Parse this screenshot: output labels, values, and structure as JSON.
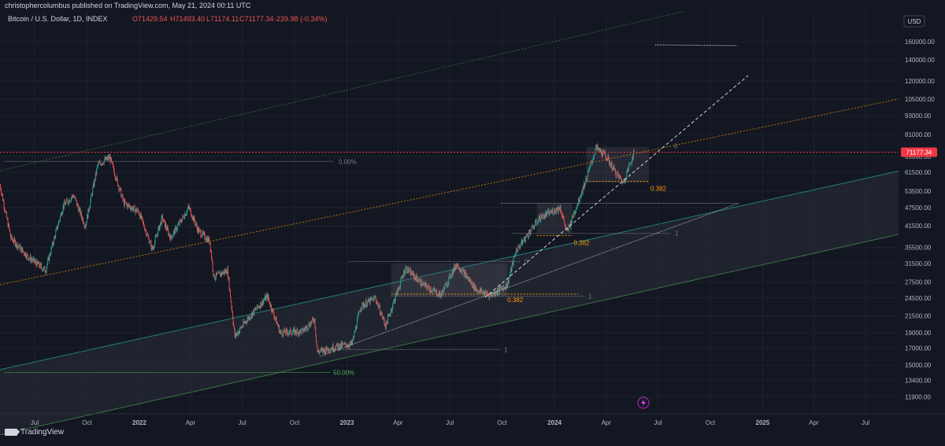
{
  "header": {
    "text": "christophercolumbus published on TradingView.com, May 21, 2024 00:11 UTC"
  },
  "chart_data": {
    "type": "candlestick",
    "title": "Bitcoin / U.S. Dollar, 1D, INDEX",
    "ohlc": {
      "open": "O71429.54",
      "high": "H71493.40",
      "low": "L71174.11",
      "close": "C71177.34",
      "change": "-239.98 (-0.34%)"
    },
    "currency": "USD",
    "current_price": "71177.34",
    "y_scale": "log",
    "ylim": [
      10500,
      200000
    ],
    "y_ticks": [
      160000,
      140000,
      120000,
      105000,
      93000,
      81000,
      69000,
      61500,
      53500,
      47500,
      41500,
      35500,
      31500,
      27500,
      24500,
      21500,
      19000,
      17000,
      15000,
      13400,
      11900
    ],
    "y_tick_labels": [
      "160000.00",
      "140000.00",
      "120000.00",
      "105000.00",
      "93000.00",
      "81000.00",
      "69000.00",
      "61500.00",
      "53500.00",
      "47500.00",
      "41500.00",
      "35500.00",
      "31500.00",
      "27500.00",
      "24500.00",
      "21500.00",
      "19000.00",
      "17000.00",
      "15000.00",
      "13400.00",
      "11900.00"
    ],
    "x_tick_labels": [
      "Jul",
      "Oct",
      "2022",
      "Apr",
      "Jul",
      "Oct",
      "2023",
      "Apr",
      "Jul",
      "Oct",
      "2024",
      "Apr",
      "Jul",
      "Oct",
      "2025",
      "Apr",
      "Jul"
    ],
    "x_tick_dates": [
      "2021-07-01",
      "2021-10-01",
      "2022-01-01",
      "2022-04-01",
      "2022-07-01",
      "2022-10-01",
      "2023-01-01",
      "2023-04-01",
      "2023-07-01",
      "2023-10-01",
      "2024-01-01",
      "2024-04-01",
      "2024-07-01",
      "2024-10-01",
      "2025-01-01",
      "2025-04-01",
      "2025-07-01"
    ],
    "price_path": [
      [
        "2021-05-01",
        56000
      ],
      [
        "2021-05-20",
        38000
      ],
      [
        "2021-06-20",
        33000
      ],
      [
        "2021-07-20",
        30000
      ],
      [
        "2021-08-20",
        48000
      ],
      [
        "2021-09-07",
        52000
      ],
      [
        "2021-09-28",
        41500
      ],
      [
        "2021-10-20",
        65000
      ],
      [
        "2021-11-10",
        68500
      ],
      [
        "2021-12-05",
        49000
      ],
      [
        "2021-12-31",
        46000
      ],
      [
        "2022-01-24",
        35000
      ],
      [
        "2022-02-10",
        44000
      ],
      [
        "2022-02-25",
        38000
      ],
      [
        "2022-03-29",
        47500
      ],
      [
        "2022-04-15",
        40000
      ],
      [
        "2022-05-05",
        37000
      ],
      [
        "2022-05-12",
        28500
      ],
      [
        "2022-06-05",
        30000
      ],
      [
        "2022-06-18",
        18500
      ],
      [
        "2022-07-10",
        21000
      ],
      [
        "2022-08-14",
        24800
      ],
      [
        "2022-09-06",
        19000
      ],
      [
        "2022-10-15",
        19200
      ],
      [
        "2022-11-05",
        21000
      ],
      [
        "2022-11-10",
        16500
      ],
      [
        "2022-12-15",
        17200
      ],
      [
        "2023-01-10",
        17500
      ],
      [
        "2023-01-25",
        23000
      ],
      [
        "2023-02-20",
        24500
      ],
      [
        "2023-03-10",
        20000
      ],
      [
        "2023-04-14",
        30500
      ],
      [
        "2023-05-15",
        27000
      ],
      [
        "2023-06-15",
        25000
      ],
      [
        "2023-07-13",
        31500
      ],
      [
        "2023-08-17",
        26000
      ],
      [
        "2023-09-11",
        25000
      ],
      [
        "2023-10-10",
        27000
      ],
      [
        "2023-10-25",
        34500
      ],
      [
        "2023-12-06",
        44000
      ],
      [
        "2024-01-11",
        47500
      ],
      [
        "2024-01-23",
        39500
      ],
      [
        "2024-02-28",
        60000
      ],
      [
        "2024-03-14",
        73500
      ],
      [
        "2024-04-01",
        69000
      ],
      [
        "2024-04-17",
        61500
      ],
      [
        "2024-05-01",
        57000
      ],
      [
        "2024-05-20",
        71177
      ]
    ],
    "lines": {
      "horizontal_resistance": 71177,
      "ath_level_label": "0.00%",
      "ath_level": 66500,
      "fifty_pct_label": "50.00%",
      "fifty_pct_level": 14200
    },
    "fib_boxes": [
      {
        "start": "2023-03-20",
        "end": "2023-10-10",
        "top": 31500,
        "bottom": 24800,
        "label_top": "0",
        "label_mid": "0.382",
        "label_bottom": "1",
        "level_382": 25200
      },
      {
        "start": "2023-12-01",
        "end": "2024-02-01",
        "top": 49000,
        "bottom": 39500,
        "label_mid": "0.382",
        "label_bottom": "1",
        "level_382": 38700
      },
      {
        "start": "2024-02-26",
        "end": "2024-06-15",
        "top": 74000,
        "bottom": 57000,
        "label_top": "0",
        "label_mid": "0.382",
        "level_382": 57500
      }
    ],
    "fib_ones": [
      {
        "date_end": "2023-01-15",
        "level": 16800,
        "label": "1"
      }
    ]
  },
  "colors": {
    "background": "#131722",
    "up": "#26a69a",
    "down": "#ef5350",
    "grid": "#1e222d",
    "price_badge": "#f23645",
    "fib_orange": "#ff9800",
    "channel_fill": "#2a2e39"
  },
  "footer": {
    "brand": "TradingView"
  },
  "icons": {
    "lightning": "lightning-icon"
  }
}
